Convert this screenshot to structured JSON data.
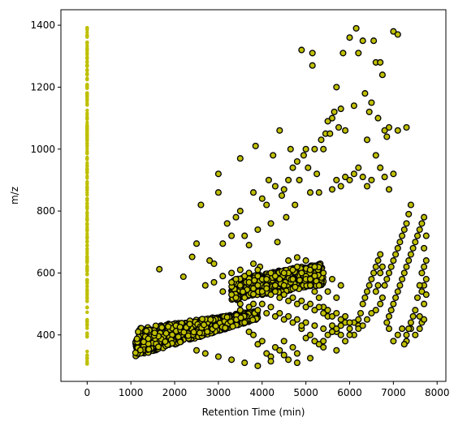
{
  "chart_data": {
    "type": "scatter",
    "xlabel": "Retention Time (min)",
    "ylabel": "m/z",
    "xlim": [
      -600,
      8200
    ],
    "ylim": [
      250,
      1450
    ],
    "xticks": [
      0,
      1000,
      2000,
      3000,
      4000,
      5000,
      6000,
      7000,
      8000
    ],
    "yticks": [
      400,
      600,
      800,
      1000,
      1200,
      1400
    ],
    "grid": false,
    "series": [
      {
        "marker": "circle",
        "color": "#bfbf00",
        "edgecolor": "#000000",
        "points": [
          [
            1650,
            612
          ],
          [
            2200,
            588
          ],
          [
            2400,
            652
          ],
          [
            2500,
            695
          ],
          [
            2600,
            820
          ],
          [
            2800,
            640
          ],
          [
            2900,
            630
          ],
          [
            3000,
            920
          ],
          [
            3000,
            860
          ],
          [
            3100,
            695
          ],
          [
            3200,
            760
          ],
          [
            3300,
            720
          ],
          [
            3400,
            780
          ],
          [
            3500,
            970
          ],
          [
            3500,
            800
          ],
          [
            3600,
            720
          ],
          [
            3700,
            690
          ],
          [
            3800,
            860
          ],
          [
            3850,
            1010
          ],
          [
            3900,
            740
          ],
          [
            3950,
            620
          ],
          [
            4000,
            840
          ],
          [
            4100,
            820
          ],
          [
            4150,
            900
          ],
          [
            4200,
            760
          ],
          [
            4250,
            980
          ],
          [
            4300,
            880
          ],
          [
            4350,
            700
          ],
          [
            4400,
            1060
          ],
          [
            4450,
            850
          ],
          [
            4500,
            870
          ],
          [
            4550,
            780
          ],
          [
            4600,
            900
          ],
          [
            4650,
            1000
          ],
          [
            4700,
            940
          ],
          [
            4750,
            820
          ],
          [
            4800,
            960
          ],
          [
            4850,
            900
          ],
          [
            4900,
            1320
          ],
          [
            4950,
            980
          ],
          [
            5000,
            1000
          ],
          [
            5050,
            940
          ],
          [
            5100,
            860
          ],
          [
            5150,
            1310
          ],
          [
            5150,
            1270
          ],
          [
            5200,
            1000
          ],
          [
            5250,
            920
          ],
          [
            5300,
            860
          ],
          [
            5350,
            1030
          ],
          [
            5400,
            1000
          ],
          [
            5450,
            1050
          ],
          [
            5500,
            1090
          ],
          [
            5550,
            1050
          ],
          [
            5600,
            1100
          ],
          [
            5650,
            1120
          ],
          [
            5700,
            1200
          ],
          [
            5750,
            1070
          ],
          [
            5800,
            1130
          ],
          [
            5850,
            1310
          ],
          [
            5900,
            1060
          ],
          [
            6000,
            1360
          ],
          [
            6100,
            1140
          ],
          [
            6150,
            1390
          ],
          [
            6200,
            1310
          ],
          [
            6300,
            1350
          ],
          [
            6350,
            1180
          ],
          [
            6400,
            1030
          ],
          [
            6450,
            1120
          ],
          [
            6500,
            1150
          ],
          [
            6550,
            1350
          ],
          [
            6600,
            1280
          ],
          [
            6650,
            1100
          ],
          [
            6700,
            1280
          ],
          [
            6750,
            1240
          ],
          [
            6800,
            1060
          ],
          [
            6850,
            1040
          ],
          [
            6900,
            1070
          ],
          [
            7000,
            1380
          ],
          [
            7100,
            1370
          ],
          [
            7100,
            1060
          ],
          [
            7300,
            1070
          ],
          [
            6600,
            980
          ],
          [
            6700,
            940
          ],
          [
            6800,
            910
          ],
          [
            6900,
            870
          ],
          [
            7000,
            920
          ],
          [
            6500,
            900
          ],
          [
            6400,
            880
          ],
          [
            6300,
            910
          ],
          [
            6200,
            940
          ],
          [
            6100,
            920
          ],
          [
            6000,
            900
          ],
          [
            5900,
            910
          ],
          [
            5800,
            880
          ],
          [
            5700,
            900
          ],
          [
            5600,
            870
          ],
          [
            3800,
            630
          ],
          [
            3900,
            610
          ],
          [
            4000,
            580
          ],
          [
            4100,
            560
          ],
          [
            4200,
            600
          ],
          [
            4300,
            560
          ],
          [
            4400,
            580
          ],
          [
            4500,
            560
          ],
          [
            4600,
            600
          ],
          [
            4700,
            580
          ],
          [
            4800,
            620
          ],
          [
            4900,
            600
          ],
          [
            5000,
            580
          ],
          [
            5100,
            560
          ],
          [
            5200,
            540
          ],
          [
            5300,
            520
          ],
          [
            5400,
            490
          ],
          [
            5500,
            460
          ],
          [
            5600,
            430
          ],
          [
            5700,
            410
          ],
          [
            5800,
            400
          ],
          [
            5900,
            440
          ],
          [
            6000,
            420
          ],
          [
            6100,
            400
          ],
          [
            6200,
            430
          ],
          [
            3500,
            480
          ],
          [
            3600,
            440
          ],
          [
            3700,
            410
          ],
          [
            3800,
            400
          ],
          [
            3900,
            370
          ],
          [
            4000,
            380
          ],
          [
            4100,
            340
          ],
          [
            4200,
            330
          ],
          [
            4300,
            360
          ],
          [
            4400,
            350
          ],
          [
            4500,
            380
          ],
          [
            4600,
            320
          ],
          [
            4700,
            360
          ],
          [
            4800,
            340
          ],
          [
            4900,
            420
          ],
          [
            5000,
            390
          ],
          [
            5100,
            400
          ],
          [
            5200,
            380
          ],
          [
            5300,
            370
          ],
          [
            5400,
            380
          ],
          [
            5500,
            400
          ],
          [
            5600,
            410
          ],
          [
            5700,
            420
          ],
          [
            5800,
            430
          ],
          [
            5900,
            380
          ],
          [
            6000,
            400
          ],
          [
            6100,
            440
          ],
          [
            6200,
            420
          ],
          [
            2500,
            350
          ],
          [
            2700,
            340
          ],
          [
            3000,
            330
          ],
          [
            3300,
            320
          ],
          [
            3600,
            310
          ],
          [
            3900,
            300
          ],
          [
            4200,
            315
          ],
          [
            4500,
            335
          ],
          [
            4800,
            310
          ],
          [
            5100,
            325
          ],
          [
            5400,
            360
          ],
          [
            5700,
            350
          ],
          [
            6800,
            560
          ],
          [
            6850,
            580
          ],
          [
            6900,
            600
          ],
          [
            6950,
            620
          ],
          [
            7000,
            640
          ],
          [
            7050,
            660
          ],
          [
            7100,
            680
          ],
          [
            7150,
            700
          ],
          [
            7200,
            720
          ],
          [
            7250,
            740
          ],
          [
            7300,
            760
          ],
          [
            7350,
            790
          ],
          [
            7400,
            820
          ],
          [
            6850,
            440
          ],
          [
            6900,
            460
          ],
          [
            6950,
            480
          ],
          [
            7000,
            500
          ],
          [
            7050,
            520
          ],
          [
            7100,
            540
          ],
          [
            7150,
            560
          ],
          [
            7200,
            580
          ],
          [
            7250,
            600
          ],
          [
            7300,
            620
          ],
          [
            7350,
            640
          ],
          [
            7400,
            660
          ],
          [
            7450,
            680
          ],
          [
            7500,
            700
          ],
          [
            7550,
            720
          ],
          [
            7600,
            740
          ],
          [
            7650,
            760
          ],
          [
            7700,
            780
          ],
          [
            6900,
            420
          ],
          [
            7000,
            380
          ],
          [
            7100,
            400
          ],
          [
            7200,
            420
          ],
          [
            7300,
            380
          ],
          [
            7400,
            420
          ],
          [
            7500,
            400
          ],
          [
            7600,
            460
          ],
          [
            7700,
            500
          ],
          [
            7650,
            540
          ],
          [
            7700,
            560
          ],
          [
            7750,
            580
          ],
          [
            7700,
            620
          ],
          [
            7750,
            640
          ],
          [
            7700,
            680
          ],
          [
            7750,
            720
          ],
          [
            7650,
            600
          ],
          [
            7600,
            560
          ],
          [
            7550,
            520
          ],
          [
            7500,
            480
          ],
          [
            7450,
            460
          ],
          [
            7400,
            440
          ],
          [
            7350,
            420
          ],
          [
            7300,
            400
          ],
          [
            7250,
            370
          ],
          [
            7600,
            420
          ],
          [
            7650,
            440
          ],
          [
            7700,
            450
          ],
          [
            7750,
            530
          ],
          [
            6600,
            540
          ],
          [
            6650,
            560
          ],
          [
            6700,
            600
          ],
          [
            6750,
            620
          ],
          [
            6700,
            660
          ],
          [
            6650,
            640
          ],
          [
            6600,
            620
          ],
          [
            6550,
            600
          ],
          [
            6500,
            580
          ],
          [
            6450,
            560
          ],
          [
            6400,
            540
          ],
          [
            6350,
            520
          ],
          [
            6300,
            500
          ],
          [
            6250,
            470
          ],
          [
            6200,
            450
          ],
          [
            6300,
            430
          ],
          [
            6400,
            450
          ],
          [
            6500,
            470
          ],
          [
            6600,
            480
          ],
          [
            6700,
            500
          ],
          [
            6750,
            520
          ],
          [
            3300,
            570
          ],
          [
            3400,
            580
          ],
          [
            3500,
            560
          ],
          [
            3600,
            590
          ],
          [
            3700,
            570
          ],
          [
            3800,
            550
          ],
          [
            3900,
            560
          ],
          [
            4000,
            540
          ],
          [
            4100,
            550
          ],
          [
            4200,
            530
          ],
          [
            4300,
            540
          ],
          [
            4400,
            520
          ],
          [
            4500,
            530
          ],
          [
            4600,
            510
          ],
          [
            4700,
            520
          ],
          [
            4800,
            500
          ],
          [
            4900,
            510
          ],
          [
            5000,
            490
          ],
          [
            5100,
            500
          ],
          [
            5200,
            480
          ],
          [
            5300,
            490
          ],
          [
            5400,
            470
          ],
          [
            5500,
            480
          ],
          [
            5600,
            460
          ],
          [
            5700,
            470
          ],
          [
            5800,
            450
          ],
          [
            5900,
            460
          ],
          [
            6000,
            440
          ],
          [
            3400,
            520
          ],
          [
            3600,
            520
          ],
          [
            3800,
            500
          ],
          [
            4000,
            500
          ],
          [
            4200,
            490
          ],
          [
            4400,
            470
          ],
          [
            4600,
            460
          ],
          [
            4800,
            450
          ],
          [
            5000,
            440
          ],
          [
            5200,
            430
          ],
          [
            5400,
            420
          ],
          [
            5600,
            410
          ],
          [
            4600,
            640
          ],
          [
            4800,
            650
          ],
          [
            5000,
            640
          ],
          [
            5200,
            620
          ],
          [
            5400,
            600
          ],
          [
            5600,
            580
          ],
          [
            5800,
            560
          ],
          [
            5700,
            520
          ],
          [
            5500,
            540
          ],
          [
            5300,
            560
          ],
          [
            5100,
            580
          ],
          [
            4900,
            600
          ],
          [
            4700,
            610
          ],
          [
            4500,
            600
          ],
          [
            4300,
            590
          ],
          [
            4100,
            580
          ],
          [
            3900,
            590
          ],
          [
            3700,
            600
          ],
          [
            3500,
            610
          ],
          [
            3300,
            600
          ],
          [
            3100,
            590
          ],
          [
            2900,
            570
          ],
          [
            2700,
            560
          ],
          [
            3100,
            540
          ],
          [
            3300,
            530
          ],
          [
            3500,
            500
          ],
          [
            3700,
            490
          ],
          [
            3900,
            480
          ],
          [
            4100,
            470
          ],
          [
            4300,
            460
          ],
          [
            4500,
            450
          ],
          [
            4700,
            440
          ],
          [
            4900,
            430
          ]
        ]
      }
    ]
  }
}
